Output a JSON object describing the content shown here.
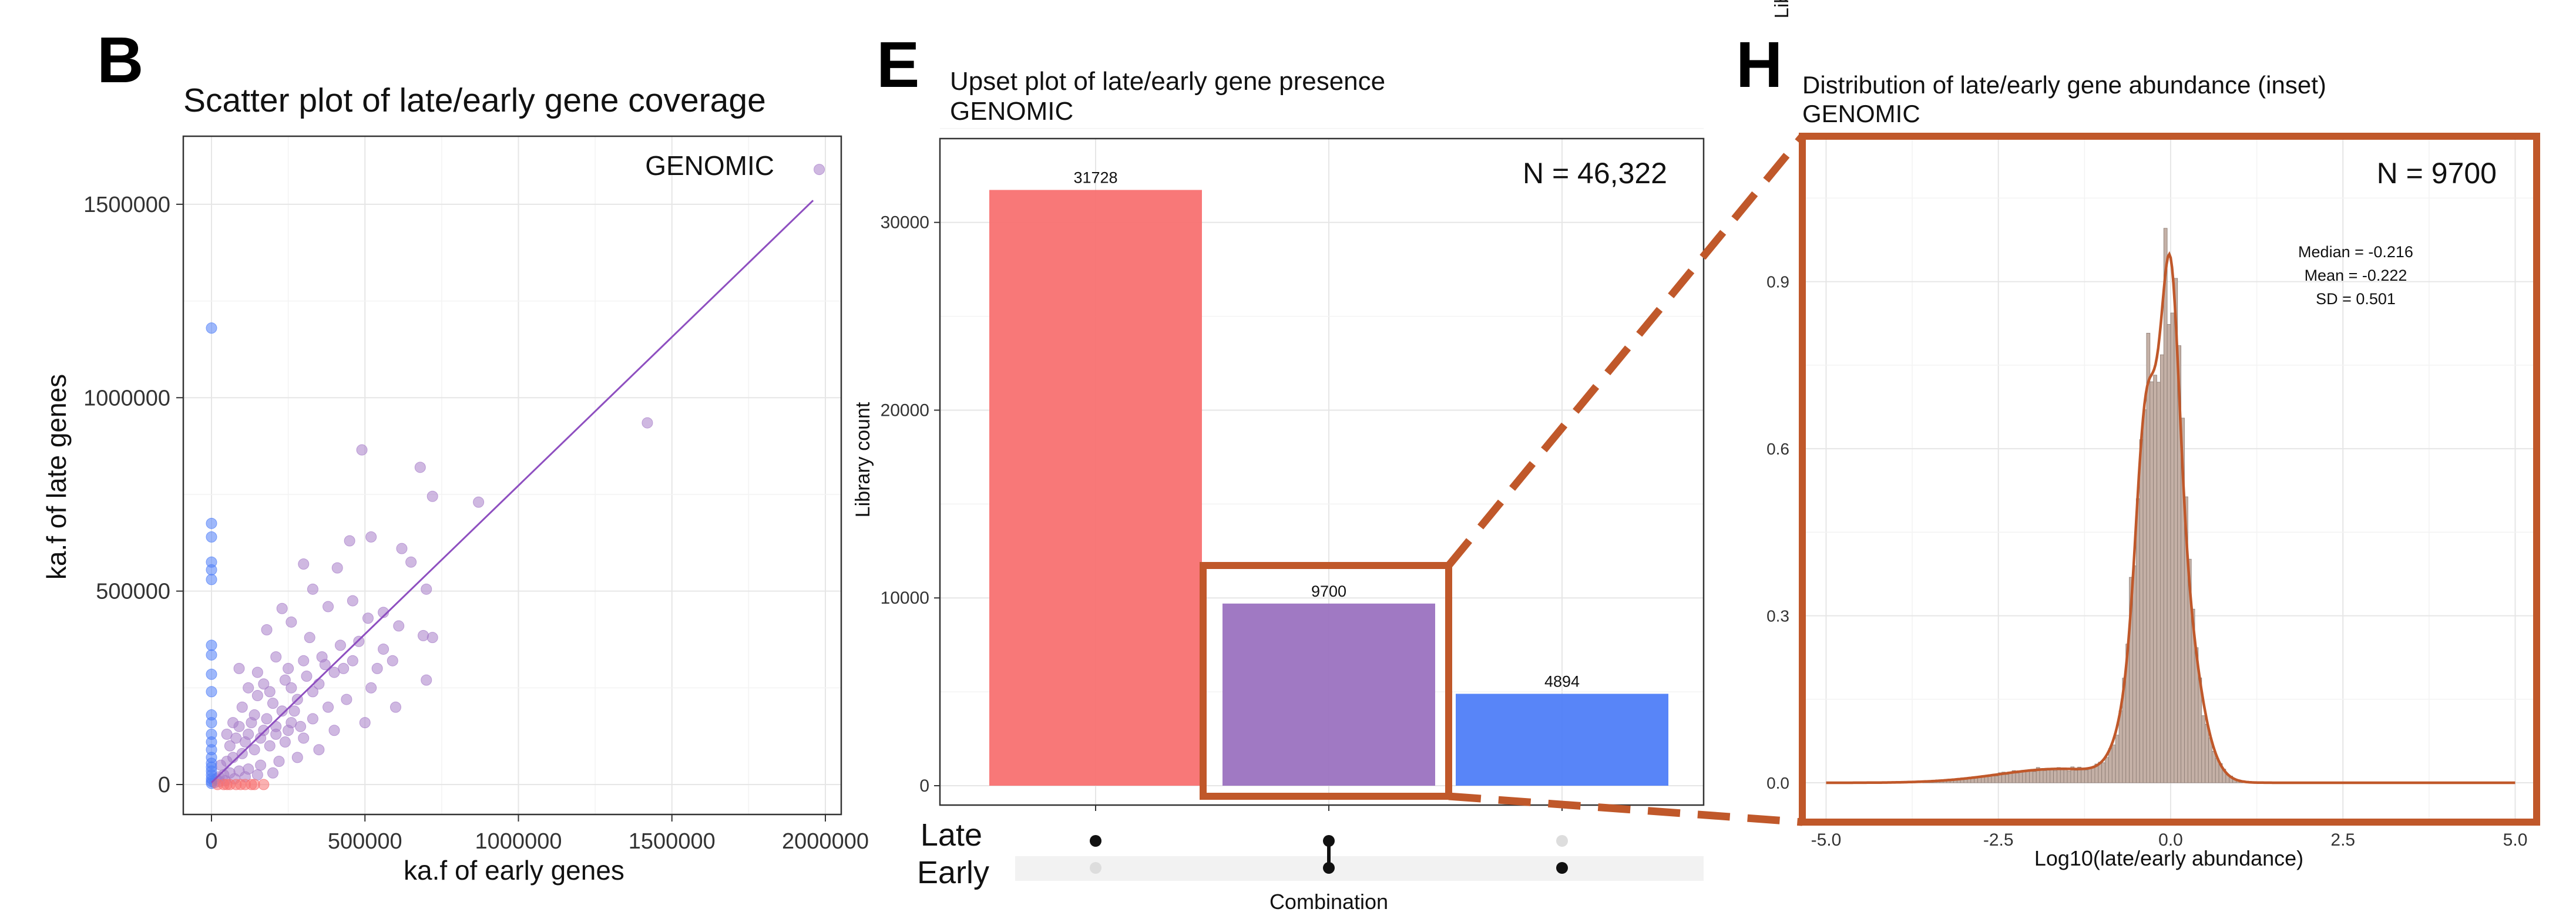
{
  "panels": {
    "B": {
      "letter": "B",
      "title": "Scatter plot of late/early gene coverage",
      "label": "GENOMIC",
      "xlabel": "ka.f of early genes",
      "ylabel": "ka.f of late genes"
    },
    "E": {
      "letter": "E",
      "title_line1": "Upset plot of late/early gene presence",
      "title_line2": "GENOMIC",
      "n_label": "N = 46,322",
      "xlabel": "Combination",
      "ylabel": "Library count",
      "set_labels": [
        "Late",
        "Early"
      ]
    },
    "H": {
      "letter": "H",
      "title_line1": "Distribution of late/early gene abundance (inset)",
      "title_line2": "GENOMIC",
      "n_label": "N = 9700",
      "stats": [
        "Median = -0.216",
        "Mean = -0.222",
        "SD = 0.501"
      ],
      "xlabel": "Log10(late/early abundance)",
      "ylabel": "Library count"
    }
  },
  "colors": {
    "late_only": "#f87171",
    "both": "#9b72c0",
    "early_only": "#4f7ef8",
    "scatter_point": "#a77ec9",
    "fit_line": "#8e4fc0",
    "highlight": "#c0582a",
    "hist_bar": "#c4b0a6",
    "dot_active": "#111111",
    "dot_inactive": "#dddddd"
  },
  "chart_data": [
    {
      "type": "scatter",
      "title": "Scatter plot of late/early gene coverage",
      "xlabel": "ka.f of early genes",
      "ylabel": "ka.f of late genes",
      "xlim": [
        0,
        2000000
      ],
      "ylim": [
        0,
        1600000
      ],
      "xticks": [
        0,
        500000,
        1000000,
        1500000,
        2000000
      ],
      "xtick_labels": [
        "0",
        "500000",
        "1000000",
        "1500000",
        "2000000"
      ],
      "yticks": [
        0,
        500000,
        1000000,
        1500000
      ],
      "ytick_labels": [
        "0",
        "500000",
        "1000000",
        "1500000"
      ],
      "grid": true,
      "fit_line": {
        "x": [
          0,
          1960000
        ],
        "y": [
          5000,
          1510000
        ]
      },
      "series": [
        {
          "name": "both",
          "color": "#a77ec9",
          "points": [
            [
              1980000,
              1590000
            ],
            [
              1420000,
              935000
            ],
            [
              490000,
              865000
            ],
            [
              680000,
              820000
            ],
            [
              870000,
              730000
            ],
            [
              720000,
              745000
            ],
            [
              520000,
              640000
            ],
            [
              450000,
              630000
            ],
            [
              620000,
              610000
            ],
            [
              300000,
              570000
            ],
            [
              410000,
              560000
            ],
            [
              650000,
              575000
            ],
            [
              700000,
              505000
            ],
            [
              460000,
              475000
            ],
            [
              230000,
              455000
            ],
            [
              690000,
              385000
            ],
            [
              720000,
              380000
            ],
            [
              510000,
              430000
            ],
            [
              560000,
              445000
            ],
            [
              700000,
              270000
            ],
            [
              330000,
              505000
            ],
            [
              380000,
              460000
            ],
            [
              260000,
              420000
            ],
            [
              180000,
              400000
            ],
            [
              320000,
              380000
            ],
            [
              420000,
              360000
            ],
            [
              520000,
              250000
            ],
            [
              600000,
              200000
            ],
            [
              300000,
              320000
            ],
            [
              250000,
              300000
            ],
            [
              150000,
              290000
            ],
            [
              90000,
              300000
            ],
            [
              400000,
              290000
            ],
            [
              350000,
              260000
            ],
            [
              460000,
              320000
            ],
            [
              280000,
              220000
            ],
            [
              200000,
              210000
            ],
            [
              150000,
              230000
            ],
            [
              100000,
              200000
            ],
            [
              380000,
              200000
            ],
            [
              440000,
              220000
            ],
            [
              330000,
              170000
            ],
            [
              260000,
              160000
            ],
            [
              210000,
              150000
            ],
            [
              170000,
              140000
            ],
            [
              120000,
              130000
            ],
            [
              80000,
              120000
            ],
            [
              60000,
              100000
            ],
            [
              500000,
              160000
            ],
            [
              400000,
              140000
            ],
            [
              300000,
              120000
            ],
            [
              240000,
              110000
            ],
            [
              190000,
              100000
            ],
            [
              140000,
              90000
            ],
            [
              100000,
              80000
            ],
            [
              70000,
              70000
            ],
            [
              50000,
              60000
            ],
            [
              30000,
              50000
            ],
            [
              350000,
              90000
            ],
            [
              280000,
              70000
            ],
            [
              220000,
              60000
            ],
            [
              160000,
              50000
            ],
            [
              120000,
              40000
            ],
            [
              90000,
              35000
            ],
            [
              60000,
              30000
            ],
            [
              40000,
              25000
            ],
            [
              25000,
              20000
            ],
            [
              15000,
              15000
            ],
            [
              200000,
              30000
            ],
            [
              150000,
              25000
            ],
            [
              110000,
              20000
            ],
            [
              75000,
              15000
            ],
            [
              45000,
              10000
            ],
            [
              25000,
              8000
            ],
            [
              10000,
              5000
            ],
            [
              260000,
              250000
            ],
            [
              310000,
              280000
            ],
            [
              360000,
              330000
            ],
            [
              230000,
              190000
            ],
            [
              180000,
              170000
            ],
            [
              130000,
              160000
            ],
            [
              110000,
              110000
            ],
            [
              160000,
              120000
            ],
            [
              210000,
              130000
            ],
            [
              250000,
              140000
            ],
            [
              290000,
              150000
            ],
            [
              330000,
              240000
            ],
            [
              270000,
              190000
            ],
            [
              370000,
              310000
            ],
            [
              430000,
              300000
            ],
            [
              480000,
              370000
            ],
            [
              560000,
              350000
            ],
            [
              610000,
              410000
            ],
            [
              540000,
              300000
            ],
            [
              590000,
              320000
            ],
            [
              140000,
              180000
            ],
            [
              90000,
              150000
            ],
            [
              50000,
              130000
            ],
            [
              70000,
              160000
            ],
            [
              190000,
              240000
            ],
            [
              240000,
              270000
            ],
            [
              170000,
              260000
            ],
            [
              210000,
              330000
            ],
            [
              120000,
              250000
            ]
          ]
        },
        {
          "name": "early_only",
          "color": "#4f7ef8",
          "points": [
            [
              0,
              1180000
            ],
            [
              0,
              675000
            ],
            [
              0,
              640000
            ],
            [
              0,
              575000
            ],
            [
              0,
              555000
            ],
            [
              0,
              530000
            ],
            [
              0,
              360000
            ],
            [
              0,
              335000
            ],
            [
              0,
              285000
            ],
            [
              0,
              240000
            ],
            [
              0,
              180000
            ],
            [
              0,
              160000
            ],
            [
              0,
              130000
            ],
            [
              0,
              110000
            ],
            [
              0,
              90000
            ],
            [
              0,
              70000
            ],
            [
              0,
              55000
            ],
            [
              0,
              45000
            ],
            [
              0,
              35000
            ],
            [
              0,
              25000
            ],
            [
              0,
              15000
            ],
            [
              0,
              8000
            ],
            [
              0,
              3000
            ]
          ]
        },
        {
          "name": "late_only",
          "color": "#f87171",
          "points": [
            [
              20000,
              0
            ],
            [
              40000,
              0
            ],
            [
              60000,
              0
            ],
            [
              80000,
              0
            ],
            [
              110000,
              0
            ],
            [
              140000,
              0
            ],
            [
              170000,
              0
            ],
            [
              50000,
              0
            ],
            [
              95000,
              0
            ],
            [
              130000,
              0
            ]
          ]
        }
      ]
    },
    {
      "type": "bar",
      "title": "Upset plot of late/early gene presence",
      "xlabel": "Combination",
      "ylabel": "Library count",
      "categories": [
        "Late only",
        "Late and Early",
        "Early only"
      ],
      "values": [
        31728,
        9700,
        4894
      ],
      "value_labels": [
        "31728",
        "9700",
        "4894"
      ],
      "ylim": [
        0,
        33400
      ],
      "yticks": [
        0,
        10000,
        20000,
        30000
      ],
      "ytick_labels": [
        "0",
        "10000",
        "20000",
        "30000"
      ],
      "grid": true,
      "matrix": {
        "sets": [
          "Late",
          "Early"
        ],
        "membership": [
          [
            true,
            false
          ],
          [
            true,
            true
          ],
          [
            false,
            true
          ]
        ]
      }
    },
    {
      "type": "bar",
      "subtype": "histogram",
      "title": "Distribution of late/early gene abundance (inset)",
      "xlabel": "Log10(late/early abundance)",
      "ylabel": "Library count",
      "xlim": [
        -5.2,
        5.2
      ],
      "ylim": [
        -0.02,
        1.1
      ],
      "xticks": [
        -5.0,
        -2.5,
        0.0,
        2.5,
        5.0
      ],
      "xtick_labels": [
        "-5.0",
        "-2.5",
        "0.0",
        "2.5",
        "5.0"
      ],
      "yticks": [
        0.0,
        0.3,
        0.6,
        0.9
      ],
      "ytick_labels": [
        "0.0",
        "0.3",
        "0.6",
        "0.9"
      ],
      "grid": true,
      "bin_range": [
        -5.0,
        5.0
      ],
      "bin_width": 0.05,
      "density_peaks": {
        "main": {
          "center": -0.1,
          "sd": 0.34,
          "height": 0.6
        },
        "upper": {
          "center": 0.0,
          "sd": 0.12,
          "height": 0.36
        },
        "left_dip": {
          "center": -0.38,
          "sd": 0.13,
          "height": 0.24
        },
        "tail": {
          "center": -1.6,
          "sd": 0.9,
          "height": 0.025
        }
      }
    }
  ]
}
